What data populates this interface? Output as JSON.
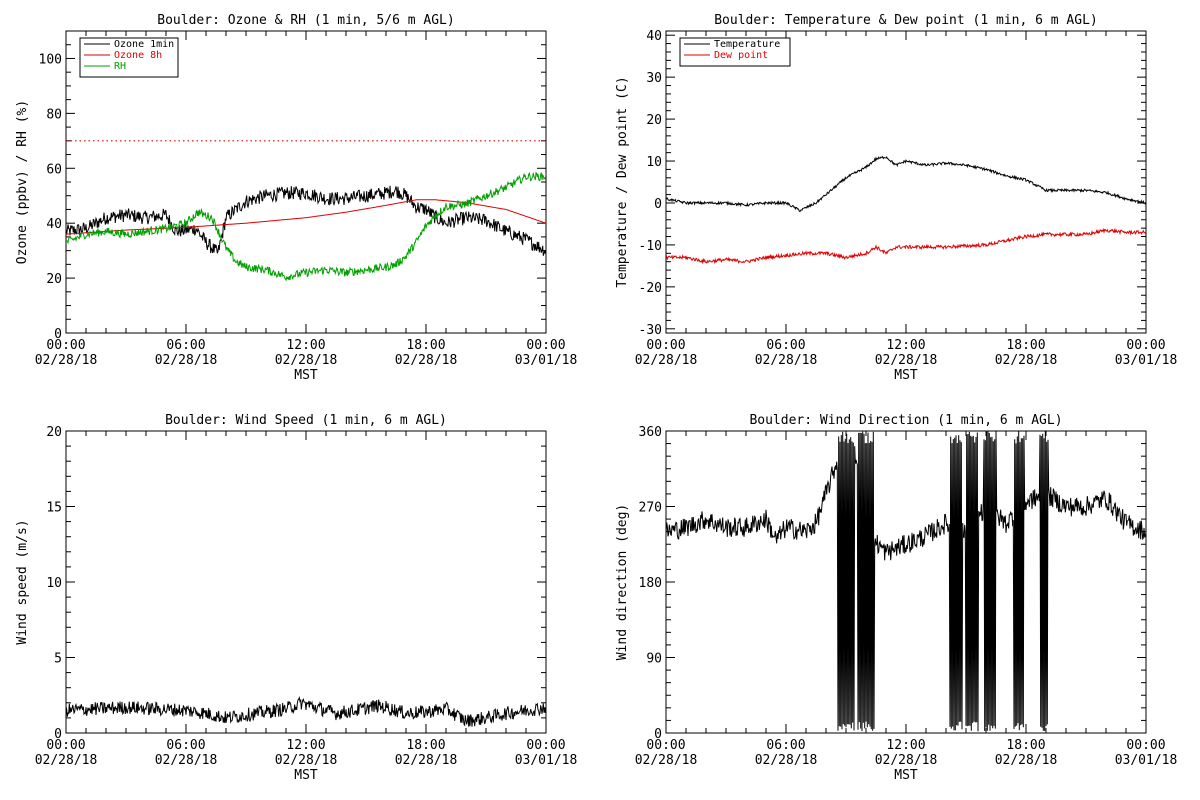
{
  "chart_data": [
    {
      "id": "ozone",
      "type": "line",
      "title": "Boulder: Ozone & RH (1 min, 5/6 m AGL)",
      "xlabel": "MST",
      "ylabel": "Ozone (ppbv) / RH (%)",
      "x_hours": [
        0,
        24
      ],
      "ylim": [
        0,
        110
      ],
      "yticks": [
        0,
        20,
        40,
        60,
        80,
        100
      ],
      "minor_y": 5,
      "legend": {
        "placement": "top-left"
      },
      "reference_lines": [
        {
          "y": 70,
          "color": "#dd0000",
          "style": "dotted"
        }
      ],
      "series": [
        {
          "name": "Ozone 1min",
          "color": "#000000",
          "noise": 2.5,
          "points": [
            [
              0,
              37
            ],
            [
              1,
              38
            ],
            [
              2,
              42
            ],
            [
              3,
              43
            ],
            [
              4,
              42
            ],
            [
              5,
              43
            ],
            [
              5.5,
              37
            ],
            [
              6.5,
              38
            ],
            [
              7,
              33
            ],
            [
              7.6,
              29
            ],
            [
              8,
              42
            ],
            [
              9,
              48
            ],
            [
              10,
              50
            ],
            [
              11,
              51
            ],
            [
              12,
              51
            ],
            [
              13,
              49
            ],
            [
              14,
              49
            ],
            [
              15,
              50
            ],
            [
              16,
              51
            ],
            [
              16.5,
              52
            ],
            [
              17,
              50
            ],
            [
              17.5,
              46
            ],
            [
              18,
              45
            ],
            [
              18.5,
              42
            ],
            [
              19,
              40
            ],
            [
              20,
              42
            ],
            [
              21,
              41
            ],
            [
              22,
              37
            ],
            [
              23,
              34
            ],
            [
              24,
              30
            ]
          ]
        },
        {
          "name": "Ozone 8h",
          "color": "#dd0000",
          "noise": 0,
          "points": [
            [
              0,
              36
            ],
            [
              3,
              37.5
            ],
            [
              6,
              38.5
            ],
            [
              9,
              40
            ],
            [
              12,
              42
            ],
            [
              14,
              44
            ],
            [
              16,
              46.5
            ],
            [
              17.5,
              48.5
            ],
            [
              18.5,
              48.5
            ],
            [
              20,
              47.5
            ],
            [
              22,
              45
            ],
            [
              24,
              40
            ]
          ]
        },
        {
          "name": "RH",
          "color": "#00a000",
          "noise": 1.5,
          "points": [
            [
              0,
              33
            ],
            [
              1,
              36
            ],
            [
              2,
              37
            ],
            [
              3,
              36
            ],
            [
              4,
              37
            ],
            [
              5,
              38
            ],
            [
              6,
              40
            ],
            [
              6.6,
              44
            ],
            [
              7.3,
              42
            ],
            [
              8,
              31
            ],
            [
              8.5,
              26
            ],
            [
              9,
              24
            ],
            [
              10,
              23
            ],
            [
              11,
              20.5
            ],
            [
              12,
              22
            ],
            [
              13,
              23
            ],
            [
              14,
              22
            ],
            [
              15,
              23
            ],
            [
              16,
              24
            ],
            [
              16.5,
              25
            ],
            [
              17,
              28
            ],
            [
              17.5,
              33
            ],
            [
              18,
              39
            ],
            [
              18.5,
              43
            ],
            [
              19,
              46
            ],
            [
              20,
              47
            ],
            [
              21,
              50
            ],
            [
              22,
              53
            ],
            [
              23,
              57
            ],
            [
              24,
              57
            ]
          ]
        }
      ]
    },
    {
      "id": "temp",
      "type": "line",
      "title": "Boulder: Temperature & Dew point (1 min, 6 m AGL)",
      "xlabel": "MST",
      "ylabel": "Temperature / Dew point (C)",
      "x_hours": [
        0,
        24
      ],
      "ylim": [
        -31,
        41
      ],
      "yticks": [
        -30,
        -20,
        -10,
        0,
        10,
        20,
        30,
        40
      ],
      "minor_y": 2,
      "legend": {
        "placement": "top-left"
      },
      "reference_lines": [],
      "series": [
        {
          "name": "Temperature",
          "color": "#000000",
          "noise": 0.3,
          "points": [
            [
              0,
              1
            ],
            [
              1,
              0
            ],
            [
              3,
              0
            ],
            [
              4,
              -0.5
            ],
            [
              5,
              0
            ],
            [
              6,
              0
            ],
            [
              6.7,
              -1.8
            ],
            [
              7.5,
              0
            ],
            [
              8,
              2
            ],
            [
              9,
              6
            ],
            [
              10,
              8.5
            ],
            [
              10.5,
              10.5
            ],
            [
              11,
              11
            ],
            [
              11.5,
              9
            ],
            [
              12,
              10
            ],
            [
              13,
              9
            ],
            [
              14,
              9.5
            ],
            [
              15,
              9
            ],
            [
              16,
              8
            ],
            [
              17,
              6.5
            ],
            [
              18,
              5.5
            ],
            [
              19,
              3
            ],
            [
              20,
              3
            ],
            [
              21,
              3
            ],
            [
              22,
              2.5
            ],
            [
              23,
              1
            ],
            [
              24,
              0
            ]
          ]
        },
        {
          "name": "Dew point",
          "color": "#dd0000",
          "noise": 0.4,
          "points": [
            [
              0,
              -13
            ],
            [
              1,
              -13
            ],
            [
              2,
              -14
            ],
            [
              3,
              -13.5
            ],
            [
              4,
              -14
            ],
            [
              5,
              -13
            ],
            [
              6,
              -12.5
            ],
            [
              7,
              -12
            ],
            [
              8,
              -12
            ],
            [
              9,
              -13
            ],
            [
              10,
              -12
            ],
            [
              10.5,
              -10.5
            ],
            [
              11,
              -12
            ],
            [
              11.5,
              -10.5
            ],
            [
              12,
              -10.5
            ],
            [
              14,
              -10.5
            ],
            [
              16,
              -10
            ],
            [
              17,
              -9
            ],
            [
              18,
              -8
            ],
            [
              19,
              -7.5
            ],
            [
              20,
              -7.5
            ],
            [
              21,
              -7.5
            ],
            [
              22,
              -6.5
            ],
            [
              23,
              -7
            ],
            [
              24,
              -7
            ]
          ]
        }
      ]
    },
    {
      "id": "wspd",
      "type": "line",
      "title": "Boulder: Wind Speed (1 min, 6 m AGL)",
      "xlabel": "MST",
      "ylabel": "Wind speed (m/s)",
      "x_hours": [
        0,
        24
      ],
      "ylim": [
        0,
        20
      ],
      "yticks": [
        0,
        5,
        10,
        15,
        20
      ],
      "minor_y": 1,
      "legend": null,
      "reference_lines": [],
      "series": [
        {
          "name": "",
          "color": "#000000",
          "noise": 0.45,
          "points": [
            [
              0,
              1.5
            ],
            [
              3,
              1.7
            ],
            [
              6,
              1.5
            ],
            [
              7,
              1.3
            ],
            [
              8,
              1.0
            ],
            [
              9,
              1.2
            ],
            [
              10,
              1.4
            ],
            [
              11,
              1.6
            ],
            [
              11.8,
              2.0
            ],
            [
              12.5,
              1.7
            ],
            [
              13.5,
              1.3
            ],
            [
              14.5,
              1.5
            ],
            [
              15.5,
              1.8
            ],
            [
              16,
              1.7
            ],
            [
              17,
              1.3
            ],
            [
              18,
              1.4
            ],
            [
              19,
              1.6
            ],
            [
              20,
              0.8
            ],
            [
              21,
              1.0
            ],
            [
              22,
              1.3
            ],
            [
              23,
              1.5
            ],
            [
              24,
              1.7
            ]
          ]
        }
      ]
    },
    {
      "id": "wdir",
      "type": "line",
      "title": "Boulder: Wind Direction (1 min, 6 m AGL)",
      "xlabel": "MST",
      "ylabel": "Wind direction (deg)",
      "x_hours": [
        0,
        24
      ],
      "ylim": [
        0,
        360
      ],
      "yticks": [
        0,
        90,
        180,
        270,
        360
      ],
      "minor_y": 15,
      "legend": null,
      "reference_lines": [],
      "series": [
        {
          "name": "",
          "color": "#000000",
          "noise": 12,
          "wrap": true,
          "points": [
            [
              0,
              240
            ],
            [
              1,
              245
            ],
            [
              2,
              255
            ],
            [
              3,
              245
            ],
            [
              4,
              245
            ],
            [
              5,
              255
            ],
            [
              5.5,
              230
            ],
            [
              6,
              245
            ],
            [
              7,
              240
            ],
            [
              7.5,
              250
            ],
            [
              8,
              285
            ],
            [
              8.5,
              320
            ],
            [
              9,
              345
            ],
            [
              9.5,
              330
            ],
            [
              10,
              240
            ],
            [
              11,
              215
            ],
            [
              12,
              225
            ],
            [
              13,
              235
            ],
            [
              14,
              250
            ],
            [
              15,
              240
            ],
            [
              16,
              270
            ],
            [
              17,
              250
            ],
            [
              18,
              275
            ],
            [
              19,
              285
            ],
            [
              20,
              270
            ],
            [
              21,
              270
            ],
            [
              22,
              280
            ],
            [
              23,
              250
            ],
            [
              24,
              240
            ]
          ],
          "spikes": [
            [
              8.6,
              9.4
            ],
            [
              9.6,
              10.4
            ],
            [
              14.2,
              14.8
            ],
            [
              15.0,
              15.6
            ],
            [
              15.9,
              16.5
            ],
            [
              17.4,
              17.9
            ],
            [
              18.7,
              19.1
            ]
          ]
        }
      ]
    }
  ],
  "x_ticks": [
    {
      "time": "00:00",
      "date": "02/28/18"
    },
    {
      "time": "06:00",
      "date": "02/28/18"
    },
    {
      "time": "12:00",
      "date": "02/28/18"
    },
    {
      "time": "18:00",
      "date": "02/28/18"
    },
    {
      "time": "00:00",
      "date": "03/01/18"
    }
  ]
}
